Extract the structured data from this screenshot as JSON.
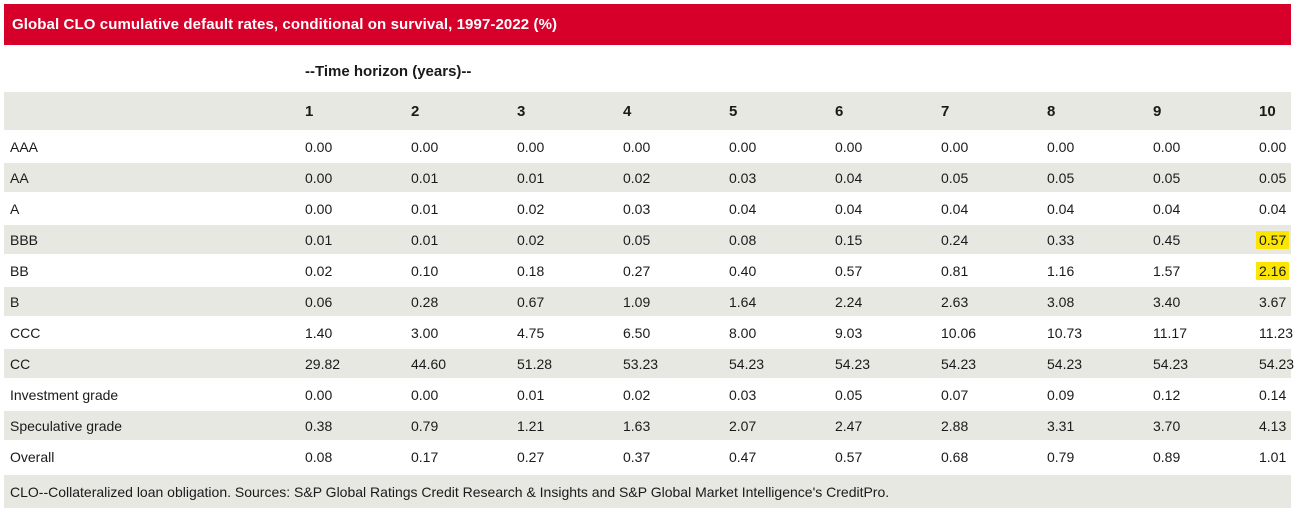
{
  "title": "Global CLO cumulative default rates, conditional on survival, 1997-2022 (%)",
  "time_horizon_label": "--Time horizon (years)--",
  "footnote": "CLO--Collateralized loan obligation. Sources: S&P Global Ratings Credit Research & Insights and S&P Global Market Intelligence's CreditPro.",
  "colors": {
    "header_bar": "#d6002a",
    "row_shade": "#e8e8e3",
    "highlight": "#fce500",
    "title_text": "#ffffff",
    "body_text": "#1a1a1a"
  },
  "chart_data": {
    "type": "table",
    "title": "Global CLO cumulative default rates, conditional on survival, 1997-2022 (%)",
    "column_group_label": "--Time horizon (years)--",
    "columns": [
      "1",
      "2",
      "3",
      "4",
      "5",
      "6",
      "7",
      "8",
      "9",
      "10"
    ],
    "rows": [
      {
        "label": "AAA",
        "values": [
          "0.00",
          "0.00",
          "0.00",
          "0.00",
          "0.00",
          "0.00",
          "0.00",
          "0.00",
          "0.00",
          "0.00"
        ]
      },
      {
        "label": "AA",
        "values": [
          "0.00",
          "0.01",
          "0.01",
          "0.02",
          "0.03",
          "0.04",
          "0.05",
          "0.05",
          "0.05",
          "0.05"
        ]
      },
      {
        "label": "A",
        "values": [
          "0.00",
          "0.01",
          "0.02",
          "0.03",
          "0.04",
          "0.04",
          "0.04",
          "0.04",
          "0.04",
          "0.04"
        ]
      },
      {
        "label": "BBB",
        "values": [
          "0.01",
          "0.01",
          "0.02",
          "0.05",
          "0.08",
          "0.15",
          "0.24",
          "0.33",
          "0.45",
          "0.57"
        ]
      },
      {
        "label": "BB",
        "values": [
          "0.02",
          "0.10",
          "0.18",
          "0.27",
          "0.40",
          "0.57",
          "0.81",
          "1.16",
          "1.57",
          "2.16"
        ]
      },
      {
        "label": "B",
        "values": [
          "0.06",
          "0.28",
          "0.67",
          "1.09",
          "1.64",
          "2.24",
          "2.63",
          "3.08",
          "3.40",
          "3.67"
        ]
      },
      {
        "label": "CCC",
        "values": [
          "1.40",
          "3.00",
          "4.75",
          "6.50",
          "8.00",
          "9.03",
          "10.06",
          "10.73",
          "11.17",
          "11.23"
        ]
      },
      {
        "label": "CC",
        "values": [
          "29.82",
          "44.60",
          "51.28",
          "53.23",
          "54.23",
          "54.23",
          "54.23",
          "54.23",
          "54.23",
          "54.23"
        ]
      },
      {
        "label": "Investment grade",
        "values": [
          "0.00",
          "0.00",
          "0.01",
          "0.02",
          "0.03",
          "0.05",
          "0.07",
          "0.09",
          "0.12",
          "0.14"
        ]
      },
      {
        "label": "Speculative grade",
        "values": [
          "0.38",
          "0.79",
          "1.21",
          "1.63",
          "2.07",
          "2.47",
          "2.88",
          "3.31",
          "3.70",
          "4.13"
        ]
      },
      {
        "label": "Overall",
        "values": [
          "0.08",
          "0.17",
          "0.27",
          "0.37",
          "0.47",
          "0.57",
          "0.68",
          "0.79",
          "0.89",
          "1.01"
        ]
      }
    ],
    "highlights": [
      {
        "row_label": "BBB",
        "column": "10",
        "value": "0.57"
      },
      {
        "row_label": "BB",
        "column": "10",
        "value": "2.16"
      }
    ],
    "layout": {
      "shaded_rows": [
        "AA",
        "BBB",
        "B",
        "CC",
        "Speculative grade"
      ],
      "header_row_shaded": true,
      "values_alignment": "left"
    }
  }
}
